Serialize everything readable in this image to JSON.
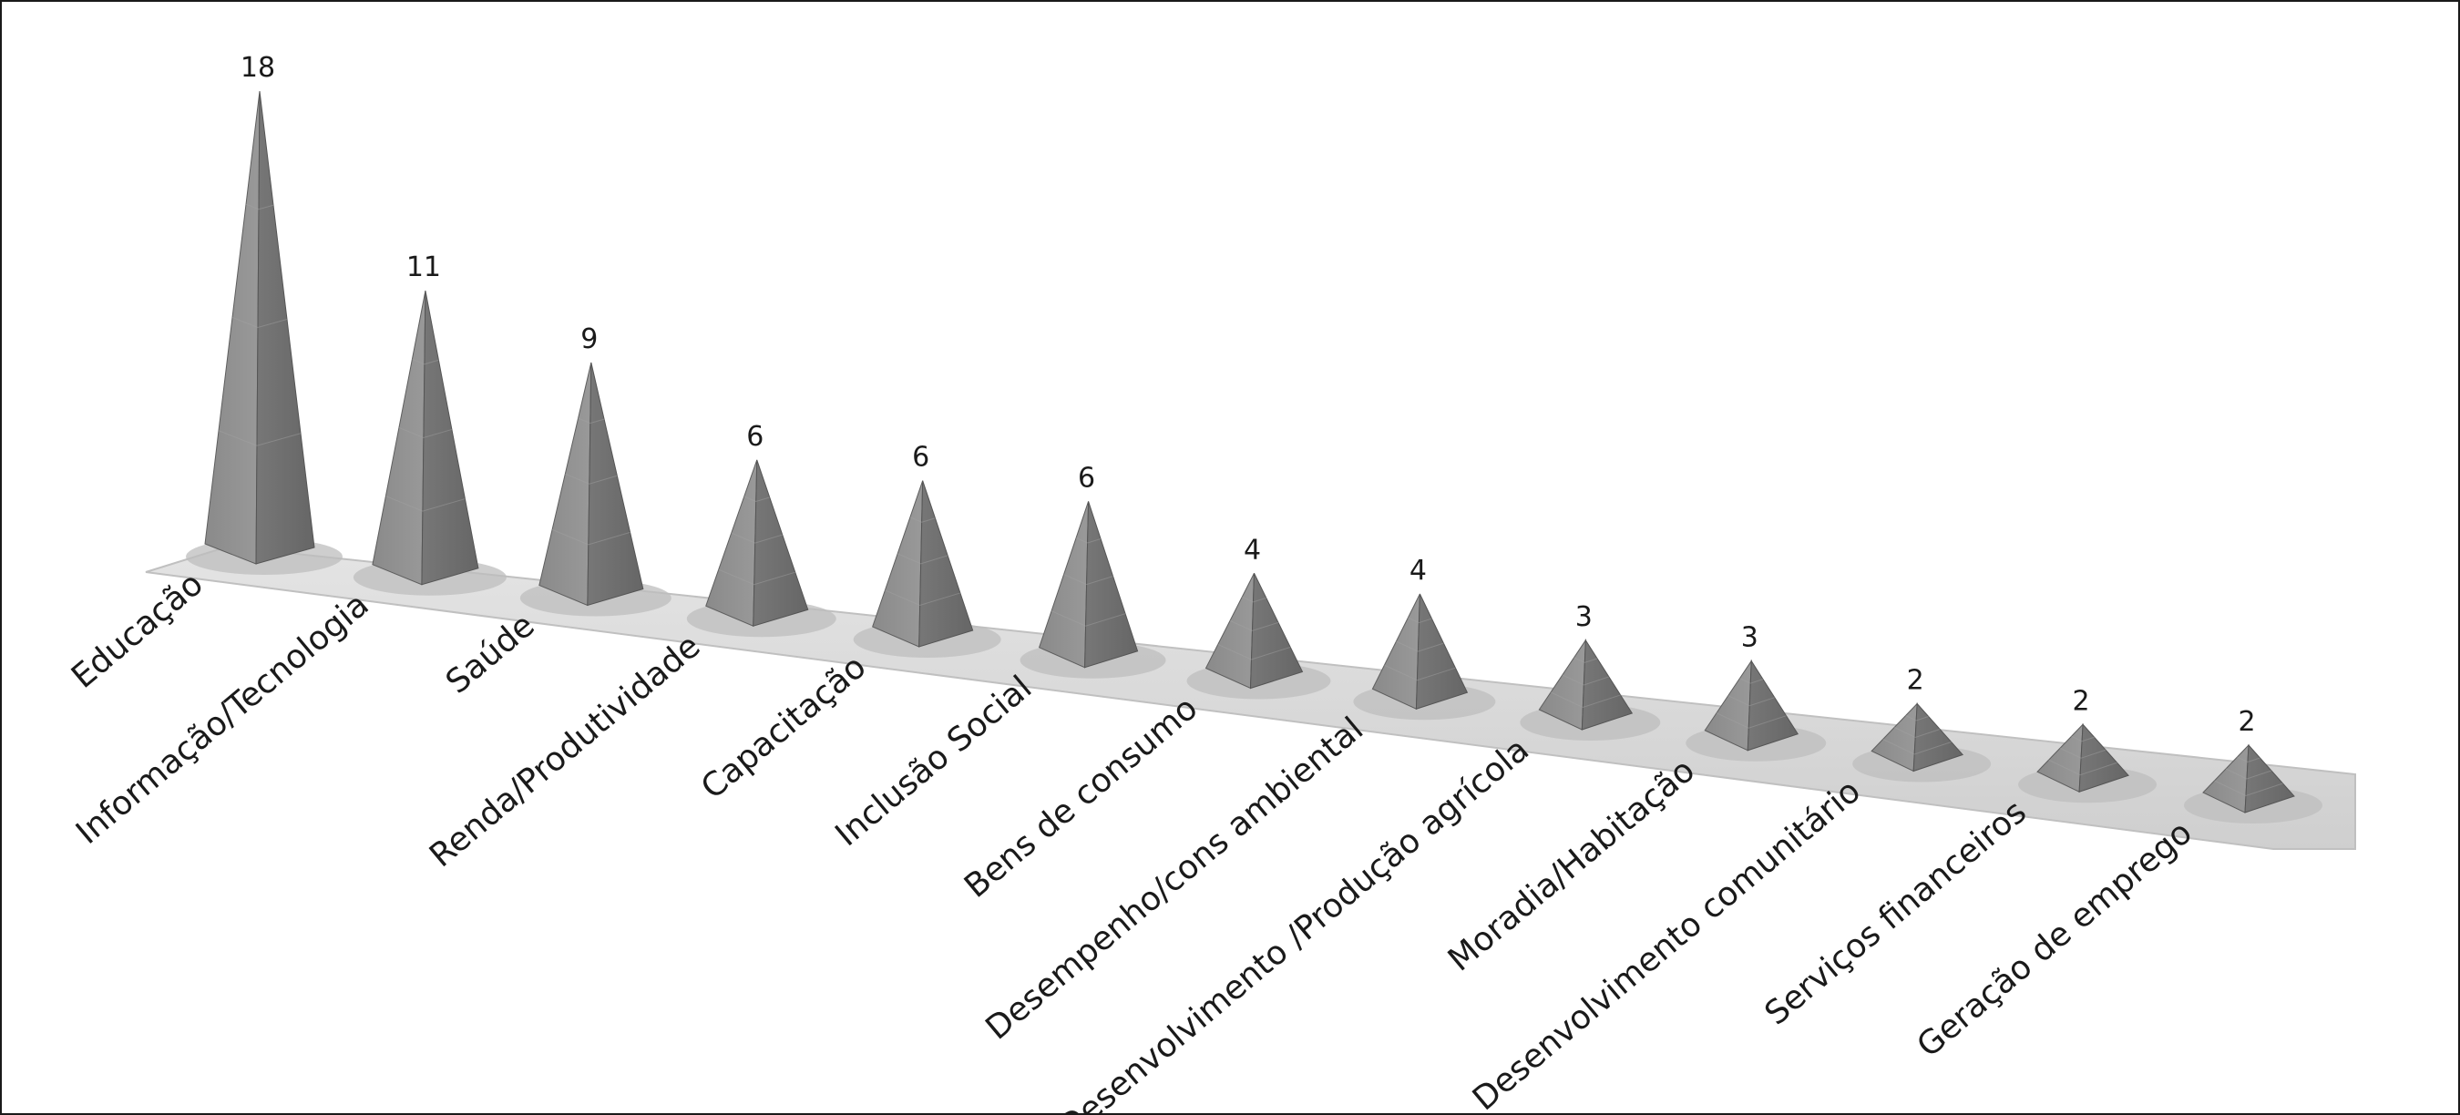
{
  "chart_data": {
    "type": "bar",
    "mark": "3d-pyramid",
    "title": "",
    "xlabel": "",
    "ylabel": "",
    "categories": [
      "Educação",
      "Informação/Tecnologia",
      "Saúde",
      "Renda/Produtividade",
      "Capacitação",
      "Inclusão Social",
      "Bens de consumo",
      "Desempenho/cons ambiental",
      "Desenvolvimento /Produção agrícola",
      "Moradia/Habitação",
      "Desenvolvimento comunitário",
      "Serviços financeiros",
      "Geração de emprego"
    ],
    "values": [
      18,
      11,
      9,
      6,
      6,
      6,
      4,
      4,
      3,
      3,
      2,
      2,
      2
    ],
    "data_labels": [
      "18",
      "11",
      "9",
      "6",
      "6",
      "6",
      "4",
      "4",
      "3",
      "3",
      "2",
      "2",
      "2"
    ],
    "ylim": [
      0,
      18
    ],
    "grid": false,
    "legend": "none",
    "colors": {
      "pyramid_left": "#8c8c8c",
      "pyramid_right": "#6e6e6e",
      "floor": "#dcdcdc",
      "floor_edge": "#c4c4c4"
    }
  }
}
